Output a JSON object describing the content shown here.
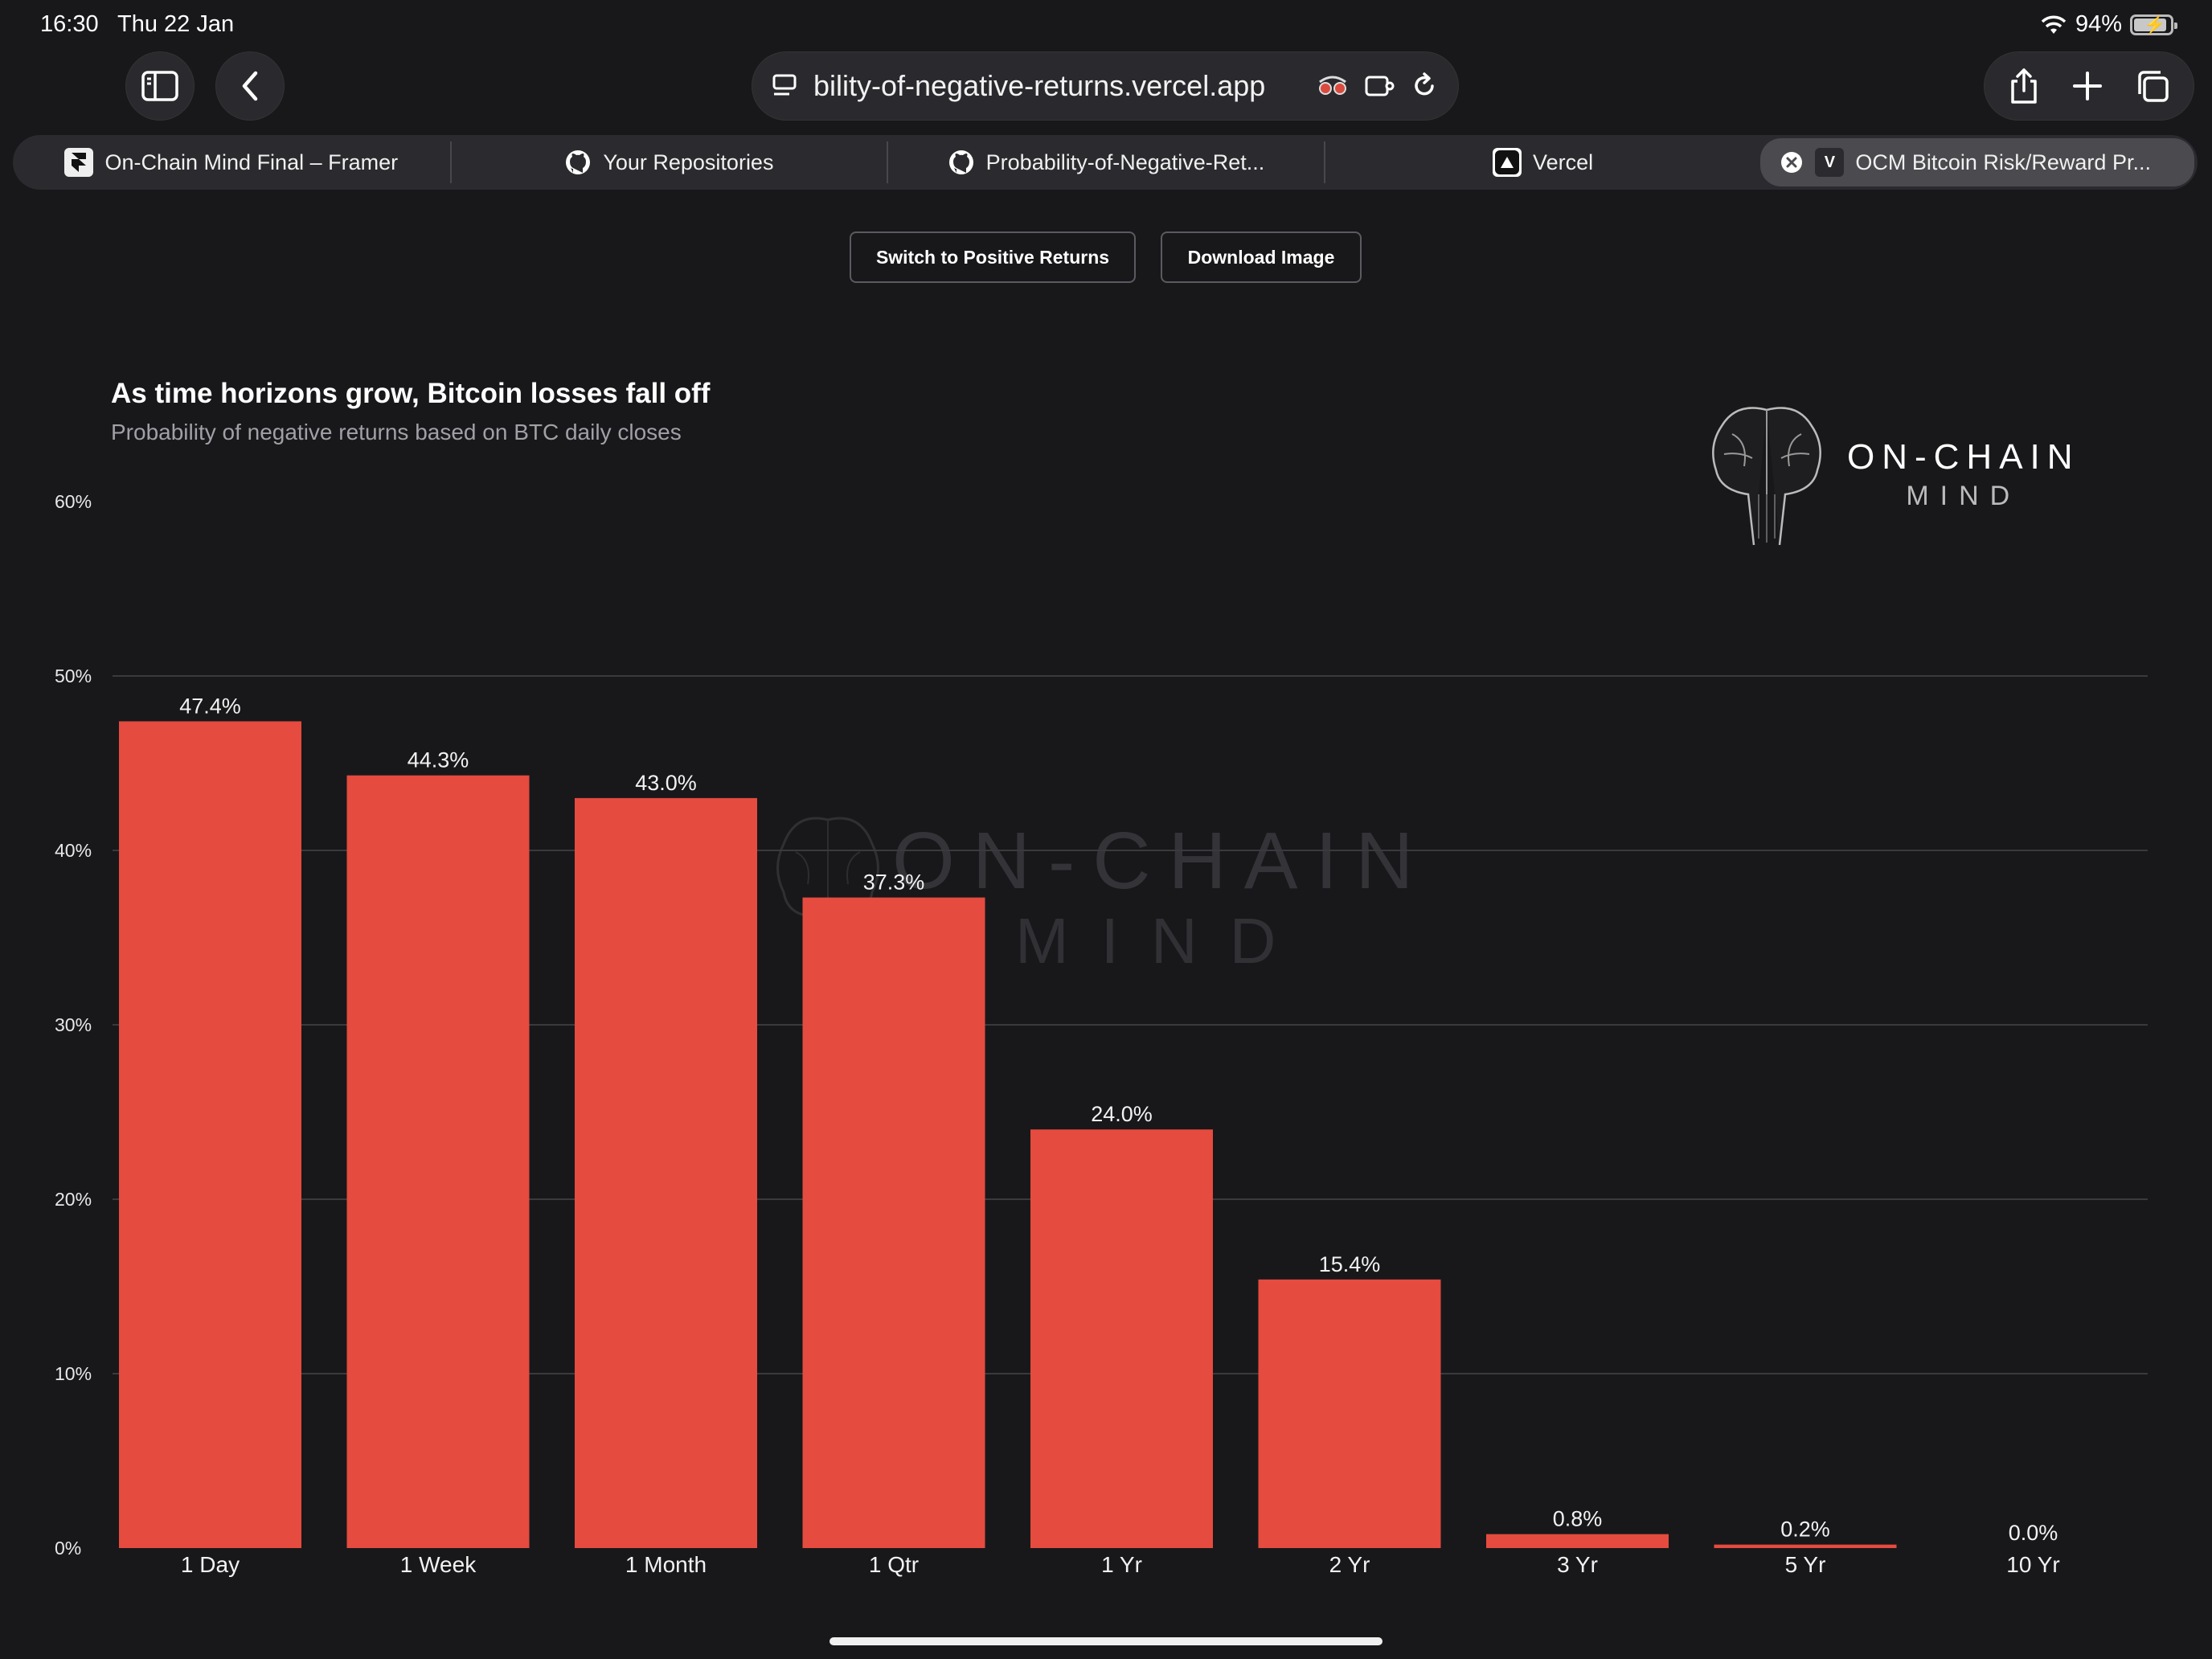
{
  "status_bar": {
    "time": "16:30",
    "date": "Thu 22 Jan",
    "battery": "94%"
  },
  "browser": {
    "address": "bility-of-negative-returns.vercel.app",
    "tabs": [
      {
        "label": "On-Chain Mind Final – Framer",
        "icon": "framer-icon"
      },
      {
        "label": "Your Repositories",
        "icon": "github-icon"
      },
      {
        "label": "Probability-of-Negative-Ret...",
        "icon": "github-icon"
      },
      {
        "label": "Vercel",
        "icon": "vercel-icon"
      },
      {
        "label": "OCM Bitcoin Risk/Reward Pr...",
        "icon": "v-icon",
        "favicon_letter": "V",
        "active": true
      }
    ]
  },
  "page": {
    "switch_label": "Switch to Positive Returns",
    "download_label": "Download Image"
  },
  "logo": {
    "line1": "ON-CHAIN",
    "line2": "MIND"
  },
  "watermark": {
    "line1": "ON-CHAIN",
    "line2": "MIND"
  },
  "colors": {
    "bar": "#e54b3e",
    "background": "#18181b",
    "grid": "#3a3a3e"
  },
  "chart_data": {
    "type": "bar",
    "title": "As time horizons grow, Bitcoin losses fall off",
    "subtitle": "Probability of negative returns based on BTC daily closes",
    "categories": [
      "1 Day",
      "1 Week",
      "1 Month",
      "1 Qtr",
      "1 Yr",
      "2 Yr",
      "3 Yr",
      "5 Yr",
      "10 Yr"
    ],
    "values": [
      47.4,
      44.3,
      43.0,
      37.3,
      24.0,
      15.4,
      0.8,
      0.2,
      0.0
    ],
    "data_labels": [
      "47.4%",
      "44.3%",
      "43.0%",
      "37.3%",
      "24.0%",
      "15.4%",
      "0.8%",
      "0.2%",
      "0.0%"
    ],
    "y_ticks": [
      0,
      10,
      20,
      30,
      40,
      50,
      60
    ],
    "y_tick_labels": [
      "0%",
      "10%",
      "20%",
      "30%",
      "40%",
      "50%",
      "60%"
    ],
    "ylim": [
      0,
      60
    ],
    "grid": true
  }
}
